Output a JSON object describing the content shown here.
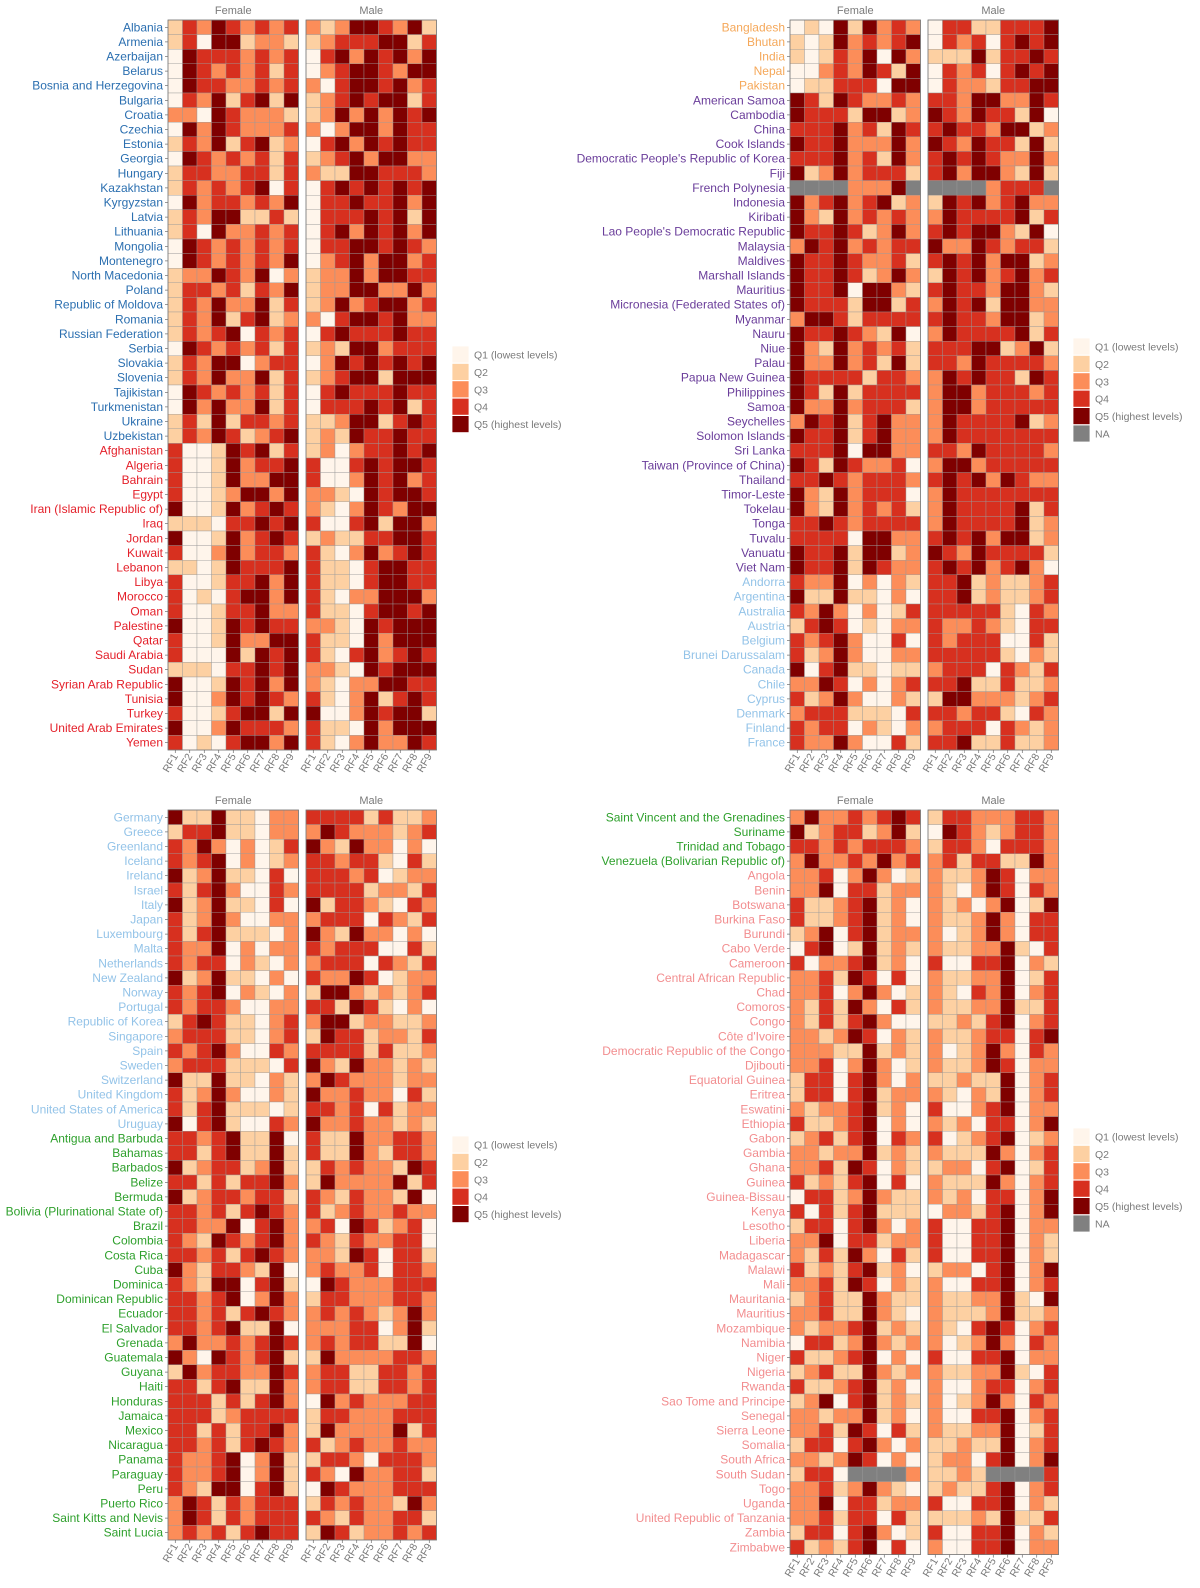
{
  "chart_data": {
    "type": "heatmap",
    "palette": {
      "Q1": "#fff5eb",
      "Q2": "#fdd0a2",
      "Q3": "#fc8d59",
      "Q4": "#d7301f",
      "Q5": "#7f0000",
      "NA": "#808080"
    },
    "region_colors": {
      "central_europe_asia": "#2b6fb0",
      "north_africa_middle_east": "#e4202a",
      "south_asia": "#f5a85a",
      "east_asia_pacific": "#6a3d9a",
      "high_income": "#93c3e8",
      "latin_america": "#2ea02c",
      "sub_saharan_africa": "#f28d8f"
    },
    "panels": [
      {
        "facets": [
          "Female",
          "Male"
        ],
        "x": [
          "RF1",
          "RF2",
          "RF3",
          "RF4",
          "RF5",
          "RF6",
          "RF7",
          "RF8",
          "RF9"
        ],
        "legend": [
          "Q1 (lowest levels)",
          "Q2",
          "Q3",
          "Q4",
          "Q5 (highest levels)"
        ],
        "groups": [
          {
            "region": "central_europe_asia",
            "countries": [
              "Albania",
              "Armenia",
              "Azerbaijan",
              "Belarus",
              "Bosnia and Herzegovina",
              "Bulgaria",
              "Croatia",
              "Czechia",
              "Estonia",
              "Georgia",
              "Hungary",
              "Kazakhstan",
              "Kyrgyzstan",
              "Latvia",
              "Lithuania",
              "Mongolia",
              "Montenegro",
              "North Macedonia",
              "Poland",
              "Republic of Moldova",
              "Romania",
              "Russian Federation",
              "Serbia",
              "Slovakia",
              "Slovenia",
              "Tajikistan",
              "Turkmenistan",
              "Ukraine",
              "Uzbekistan"
            ]
          },
          {
            "region": "north_africa_middle_east",
            "countries": [
              "Afghanistan",
              "Algeria",
              "Bahrain",
              "Egypt",
              "Iran (Islamic Republic of)",
              "Iraq",
              "Jordan",
              "Kuwait",
              "Lebanon",
              "Libya",
              "Morocco",
              "Oman",
              "Palestine",
              "Qatar",
              "Saudi Arabia",
              "Sudan",
              "Syrian Arab Republic",
              "Tunisia",
              "Turkey",
              "United Arab Emirates",
              "Yemen"
            ]
          }
        ]
      },
      {
        "facets": [
          "Female",
          "Male"
        ],
        "x": [
          "RF1",
          "RF2",
          "RF3",
          "RF4",
          "RF5",
          "RF6",
          "RF7",
          "RF8",
          "RF9"
        ],
        "legend": [
          "Q1 (lowest levels)",
          "Q2",
          "Q3",
          "Q4",
          "Q5 (highest levels)",
          "NA"
        ],
        "groups": [
          {
            "region": "south_asia",
            "countries": [
              "Bangladesh",
              "Bhutan",
              "India",
              "Nepal",
              "Pakistan"
            ]
          },
          {
            "region": "east_asia_pacific",
            "countries": [
              "American Samoa",
              "Cambodia",
              "China",
              "Cook Islands",
              "Democratic People's Republic of Korea",
              "Fiji",
              "French Polynesia",
              "Indonesia",
              "Kiribati",
              "Lao People's Democratic Republic",
              "Malaysia",
              "Maldives",
              "Marshall Islands",
              "Mauritius",
              "Micronesia (Federated States of)",
              "Myanmar",
              "Nauru",
              "Niue",
              "Palau",
              "Papua New Guinea",
              "Philippines",
              "Samoa",
              "Seychelles",
              "Solomon Islands",
              "Sri Lanka",
              "Taiwan (Province of China)",
              "Thailand",
              "Timor-Leste",
              "Tokelau",
              "Tonga",
              "Tuvalu",
              "Vanuatu",
              "Viet Nam"
            ]
          },
          {
            "region": "high_income",
            "countries": [
              "Andorra",
              "Argentina",
              "Australia",
              "Austria",
              "Belgium",
              "Brunei Darussalam",
              "Canada",
              "Chile",
              "Cyprus",
              "Denmark",
              "Finland",
              "France"
            ]
          }
        ]
      },
      {
        "facets": [
          "Female",
          "Male"
        ],
        "x": [
          "RF1",
          "RF2",
          "RF3",
          "RF4",
          "RF5",
          "RF6",
          "RF7",
          "RF8",
          "RF9"
        ],
        "legend": [
          "Q1 (lowest levels)",
          "Q2",
          "Q3",
          "Q4",
          "Q5 (highest levels)"
        ],
        "groups": [
          {
            "region": "high_income",
            "countries": [
              "Germany",
              "Greece",
              "Greenland",
              "Iceland",
              "Ireland",
              "Israel",
              "Italy",
              "Japan",
              "Luxembourg",
              "Malta",
              "Netherlands",
              "New Zealand",
              "Norway",
              "Portugal",
              "Republic of Korea",
              "Singapore",
              "Spain",
              "Sweden",
              "Switzerland",
              "United Kingdom",
              "United States of America",
              "Uruguay"
            ]
          },
          {
            "region": "latin_america",
            "countries": [
              "Antigua and Barbuda",
              "Bahamas",
              "Barbados",
              "Belize",
              "Bermuda",
              "Bolivia (Plurinational State of)",
              "Brazil",
              "Colombia",
              "Costa Rica",
              "Cuba",
              "Dominica",
              "Dominican Republic",
              "Ecuador",
              "El Salvador",
              "Grenada",
              "Guatemala",
              "Guyana",
              "Haiti",
              "Honduras",
              "Jamaica",
              "Mexico",
              "Nicaragua",
              "Panama",
              "Paraguay",
              "Peru",
              "Puerto Rico",
              "Saint Kitts and Nevis",
              "Saint Lucia"
            ]
          }
        ]
      },
      {
        "facets": [
          "Female",
          "Male"
        ],
        "x": [
          "RF1",
          "RF2",
          "RF3",
          "RF4",
          "RF5",
          "RF6",
          "RF7",
          "RF8",
          "RF9"
        ],
        "legend": [
          "Q1 (lowest levels)",
          "Q2",
          "Q3",
          "Q4",
          "Q5 (highest levels)",
          "NA"
        ],
        "groups": [
          {
            "region": "latin_america",
            "countries": [
              "Saint Vincent and the Grenadines",
              "Suriname",
              "Trinidad and Tobago",
              "Venezuela (Bolivarian Republic of)"
            ]
          },
          {
            "region": "sub_saharan_africa",
            "countries": [
              "Angola",
              "Benin",
              "Botswana",
              "Burkina Faso",
              "Burundi",
              "Cabo Verde",
              "Cameroon",
              "Central African Republic",
              "Chad",
              "Comoros",
              "Congo",
              "Côte d'Ivoire",
              "Democratic Republic of the Congo",
              "Djibouti",
              "Equatorial Guinea",
              "Eritrea",
              "Eswatini",
              "Ethiopia",
              "Gabon",
              "Gambia",
              "Ghana",
              "Guinea",
              "Guinea-Bissau",
              "Kenya",
              "Lesotho",
              "Liberia",
              "Madagascar",
              "Malawi",
              "Mali",
              "Mauritania",
              "Mauritius",
              "Mozambique",
              "Namibia",
              "Niger",
              "Nigeria",
              "Rwanda",
              "Sao Tome and Principe",
              "Senegal",
              "Sierra Leone",
              "Somalia",
              "South Africa",
              "South Sudan",
              "Togo",
              "Uganda",
              "United Republic of Tanzania",
              "Zambia",
              "Zimbabwe"
            ]
          }
        ]
      }
    ],
    "na_cells": [
      {
        "country": "French Polynesia",
        "facet": "Female",
        "rf": [
          "RF1",
          "RF2",
          "RF3",
          "RF4",
          "RF9"
        ]
      },
      {
        "country": "French Polynesia",
        "facet": "Male",
        "rf": [
          "RF1",
          "RF2",
          "RF3",
          "RF4",
          "RF9"
        ]
      },
      {
        "country": "South Sudan",
        "facet": "Female",
        "rf": [
          "RF5",
          "RF6",
          "RF7",
          "RF8"
        ]
      },
      {
        "country": "South Sudan",
        "facet": "Male",
        "rf": [
          "RF5",
          "RF6",
          "RF7",
          "RF8"
        ]
      }
    ],
    "row_patterns": {
      "central_europe_asia": {
        "Female": [
          2,
          4,
          3,
          5,
          4,
          3,
          4,
          3,
          4
        ],
        "Male": [
          2,
          3,
          4,
          5,
          5,
          4,
          5,
          4,
          4
        ]
      },
      "north_africa_middle_east": {
        "Female": [
          4,
          1,
          1,
          2,
          5,
          4,
          5,
          4,
          5
        ],
        "Male": [
          4,
          2,
          1,
          3,
          5,
          4,
          5,
          5,
          4
        ]
      },
      "south_asia": {
        "Female": [
          1,
          2,
          3,
          4,
          3,
          5,
          3,
          4,
          5
        ],
        "Male": [
          2,
          3,
          3,
          4,
          2,
          4,
          4,
          5,
          5
        ]
      },
      "east_asia_pacific": {
        "Female": [
          5,
          4,
          4,
          5,
          3,
          4,
          4,
          4,
          3
        ],
        "Male": [
          4,
          5,
          4,
          5,
          4,
          4,
          4,
          4,
          3
        ]
      },
      "high_income": {
        "Female": [
          4,
          3,
          4,
          5,
          2,
          2,
          1,
          3,
          3
        ],
        "Male": [
          4,
          4,
          4,
          4,
          3,
          3,
          2,
          3,
          3
        ]
      },
      "latin_america": {
        "Female": [
          4,
          4,
          3,
          4,
          4,
          3,
          4,
          5,
          3
        ],
        "Male": [
          3,
          4,
          3,
          4,
          3,
          3,
          4,
          4,
          3
        ]
      },
      "sub_saharan_africa": {
        "Female": [
          3,
          3,
          4,
          2,
          4,
          5,
          2,
          3,
          2
        ],
        "Male": [
          3,
          2,
          2,
          3,
          4,
          5,
          1,
          3,
          4
        ]
      }
    }
  }
}
